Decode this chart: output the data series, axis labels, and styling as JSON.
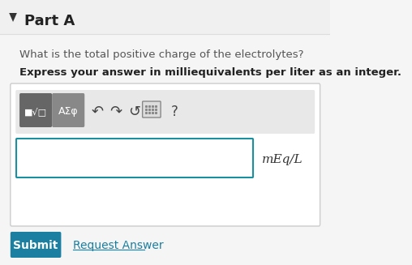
{
  "bg_color": "#f5f5f5",
  "header_bg": "#f0f0f0",
  "title": "Part A",
  "question": "What is the total positive charge of the electrolytes?",
  "bold_instruction": "Express your answer in milliequivalents per liter as an integer.",
  "unit_label": "mEq/L",
  "submit_label": "Submit",
  "request_label": "Request Answer",
  "submit_color": "#1a7fa0",
  "request_color": "#1a7fa0",
  "toolbar_bg": "#e8e8e8",
  "btn1_color": "#666666",
  "btn2_color": "#888888",
  "input_border_color": "#1a8fa0",
  "outer_border_color": "#cccccc",
  "arrow_color": "#444444",
  "header_border": "#dddddd",
  "triangle_color": "#333333"
}
